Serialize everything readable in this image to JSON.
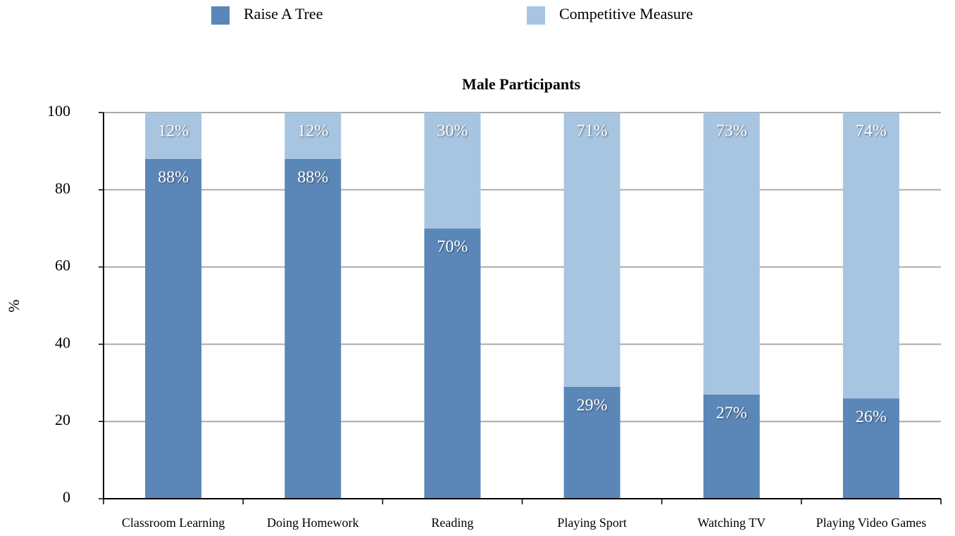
{
  "chart_data": {
    "type": "stacked_bar",
    "title": "Male Participants",
    "y_label": "%",
    "categories": [
      "Classroom Learning",
      "Doing Homework",
      "Reading",
      "Playing Sport",
      "Watching TV",
      "Playing Video Games"
    ],
    "series": [
      {
        "name": "Raise A Tree",
        "color": "#5b87b8",
        "values": [
          88,
          88,
          70,
          29,
          27,
          26
        ],
        "value_labels": [
          "88%",
          "88%",
          "70%",
          "29%",
          "27%",
          "26%"
        ]
      },
      {
        "name": "Competitive Measure",
        "color": "#a7c5e1",
        "values": [
          12,
          12,
          30,
          71,
          73,
          74
        ],
        "value_labels": [
          "12%",
          "12%",
          "30%",
          "71%",
          "73%",
          "74%"
        ]
      }
    ],
    "ylim": [
      0,
      100
    ],
    "yticks": [
      0,
      20,
      40,
      60,
      80,
      100
    ],
    "grid": true,
    "legend": "top"
  }
}
